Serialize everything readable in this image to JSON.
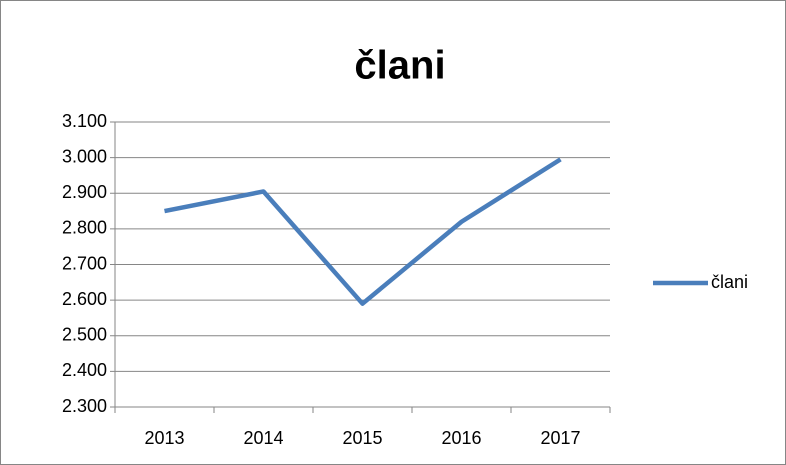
{
  "chart_data": {
    "type": "line",
    "title": "člani",
    "categories": [
      "2013",
      "2014",
      "2015",
      "2016",
      "2017"
    ],
    "series": [
      {
        "name": "člani",
        "color": "#4a7ebb",
        "values": [
          2850,
          2905,
          2590,
          2820,
          2995
        ]
      }
    ],
    "ylim": [
      2300,
      3100
    ],
    "yticks": [
      {
        "value": 2300,
        "label": "2.300"
      },
      {
        "value": 2400,
        "label": "2.400"
      },
      {
        "value": 2500,
        "label": "2.500"
      },
      {
        "value": 2600,
        "label": "2.600"
      },
      {
        "value": 2700,
        "label": "2.700"
      },
      {
        "value": 2800,
        "label": "2.800"
      },
      {
        "value": 2900,
        "label": "2.900"
      },
      {
        "value": 3000,
        "label": "3.000"
      },
      {
        "value": 3100,
        "label": "3.100"
      }
    ],
    "grid": true,
    "legend": "right"
  }
}
